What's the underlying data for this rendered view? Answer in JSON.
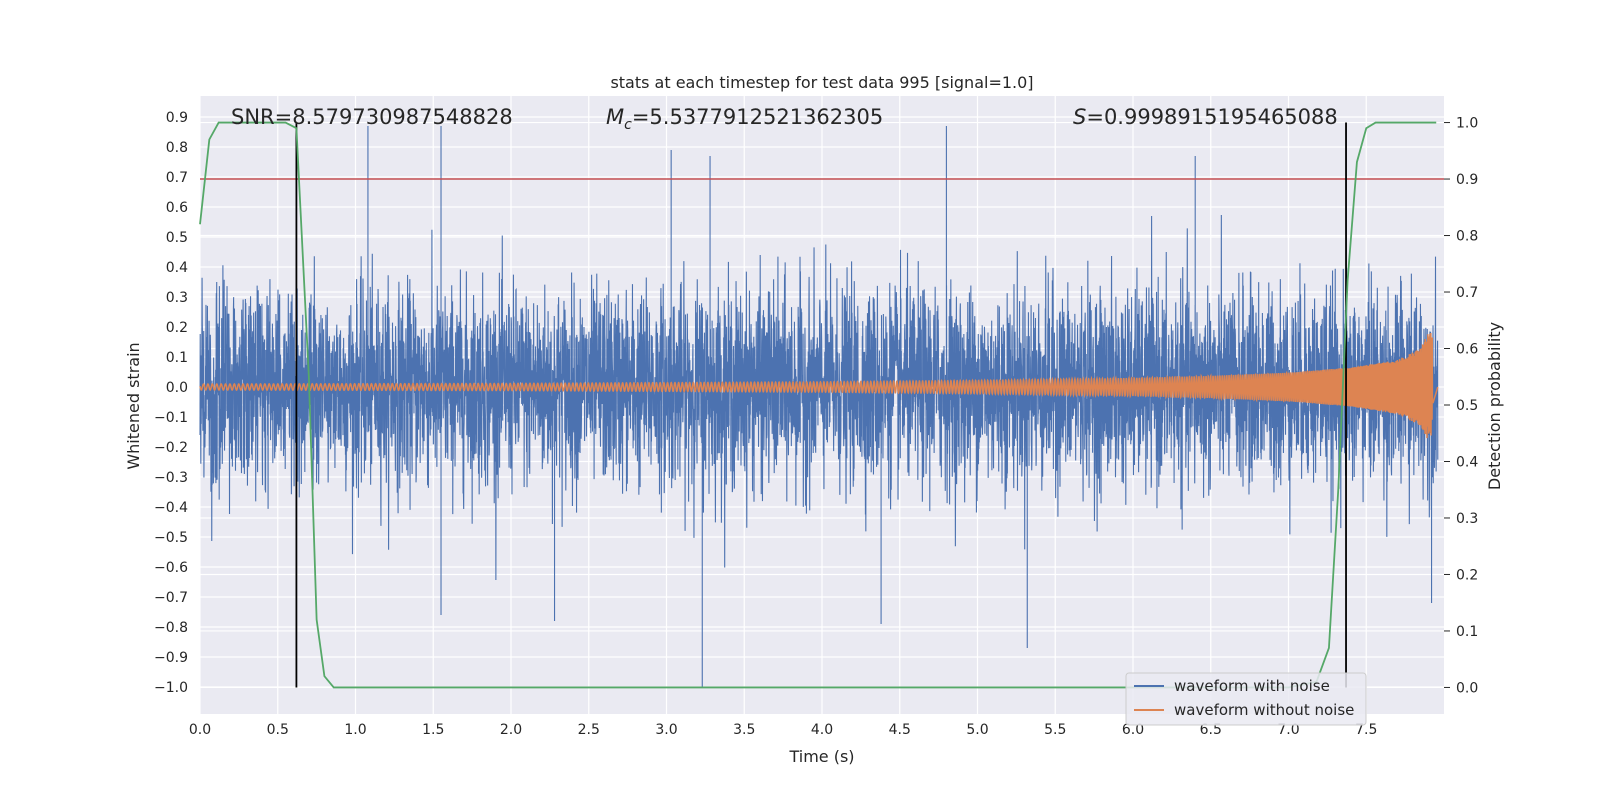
{
  "chart_data": {
    "type": "line",
    "title": "stats at each timestep for test data 995 [signal=1.0]",
    "xlabel": "Time (s)",
    "ylabel": "Whitened strain",
    "y2label": "Detection probability",
    "xlim": [
      0.0,
      8.0
    ],
    "ylim": [
      -1.09,
      0.97
    ],
    "y2lim": [
      -0.047,
      1.047
    ],
    "xticks": [
      "0.0",
      "0.5",
      "1.0",
      "1.5",
      "2.0",
      "2.5",
      "3.0",
      "3.5",
      "4.0",
      "4.5",
      "5.0",
      "5.5",
      "6.0",
      "6.5",
      "7.0",
      "7.5"
    ],
    "yticks": [
      "0.9",
      "0.8",
      "0.7",
      "0.6",
      "0.5",
      "0.4",
      "0.3",
      "0.2",
      "0.1",
      "0.0",
      "-0.1",
      "-0.2",
      "-0.3",
      "-0.4",
      "-0.5",
      "-0.6",
      "-0.7",
      "-0.8",
      "-0.9",
      "-1.0"
    ],
    "y2ticks": [
      "1.0",
      "0.9",
      "0.8",
      "0.7",
      "0.6",
      "0.5",
      "0.4",
      "0.3",
      "0.2",
      "0.1",
      "0.0"
    ],
    "annotations": {
      "snr": "SNR=8.579730987548828",
      "mc_symbol": "M",
      "mc_sub": "c",
      "mc_value": "=5.5377912521362305",
      "s_symbol": "S",
      "s_value": "=0.9998915195465088"
    },
    "threshold_line": {
      "y2": 0.9,
      "color": "#c44e52"
    },
    "vertical_markers": [
      0.62,
      7.37
    ],
    "series": [
      {
        "name": "waveform with noise",
        "color": "#4c72b0",
        "description": "whitened noisy strain, amplitude mostly within about ±0.4, peaks near 0.87 and -1.0",
        "peaks": [
          [
            0.62,
            0.82
          ],
          [
            1.08,
            0.87
          ],
          [
            1.55,
            0.87
          ],
          [
            3.03,
            0.79
          ],
          [
            3.28,
            0.77
          ],
          [
            4.8,
            0.87
          ],
          [
            6.4,
            0.77
          ],
          [
            7.37,
            0.86
          ]
        ],
        "troughs": [
          [
            1.55,
            -0.76
          ],
          [
            2.28,
            -0.78
          ],
          [
            3.23,
            -1.0
          ],
          [
            4.38,
            -0.79
          ],
          [
            5.32,
            -0.87
          ],
          [
            7.92,
            -0.72
          ]
        ]
      },
      {
        "name": "waveform without noise",
        "color": "#dd8452",
        "description": "chirp signal, amplitude ~0.01 rising to ~0.18 near merger at 7.9 s",
        "merger_time": 7.9,
        "envelope": [
          [
            0.0,
            0.01
          ],
          [
            2.0,
            0.012
          ],
          [
            4.0,
            0.017
          ],
          [
            5.0,
            0.022
          ],
          [
            6.0,
            0.03
          ],
          [
            6.5,
            0.037
          ],
          [
            7.0,
            0.048
          ],
          [
            7.4,
            0.065
          ],
          [
            7.7,
            0.09
          ],
          [
            7.85,
            0.13
          ],
          [
            7.9,
            0.18
          ],
          [
            7.93,
            0.0
          ]
        ]
      },
      {
        "name": "detection probability",
        "color": "#55a868",
        "axis": "right",
        "points": [
          [
            0.0,
            0.82
          ],
          [
            0.06,
            0.97
          ],
          [
            0.12,
            1.0
          ],
          [
            0.3,
            1.0
          ],
          [
            0.55,
            1.0
          ],
          [
            0.62,
            0.99
          ],
          [
            0.7,
            0.55
          ],
          [
            0.75,
            0.12
          ],
          [
            0.8,
            0.02
          ],
          [
            0.86,
            0.0
          ],
          [
            1.5,
            0.0
          ],
          [
            7.0,
            0.0
          ],
          [
            7.18,
            0.01
          ],
          [
            7.26,
            0.07
          ],
          [
            7.32,
            0.35
          ],
          [
            7.38,
            0.72
          ],
          [
            7.44,
            0.93
          ],
          [
            7.5,
            0.99
          ],
          [
            7.56,
            1.0
          ],
          [
            7.95,
            1.0
          ]
        ]
      }
    ],
    "legend": {
      "position": "lower-right",
      "entries": [
        {
          "label": "waveform with noise",
          "color": "#4c72b0"
        },
        {
          "label": "waveform without noise",
          "color": "#dd8452"
        }
      ]
    }
  }
}
